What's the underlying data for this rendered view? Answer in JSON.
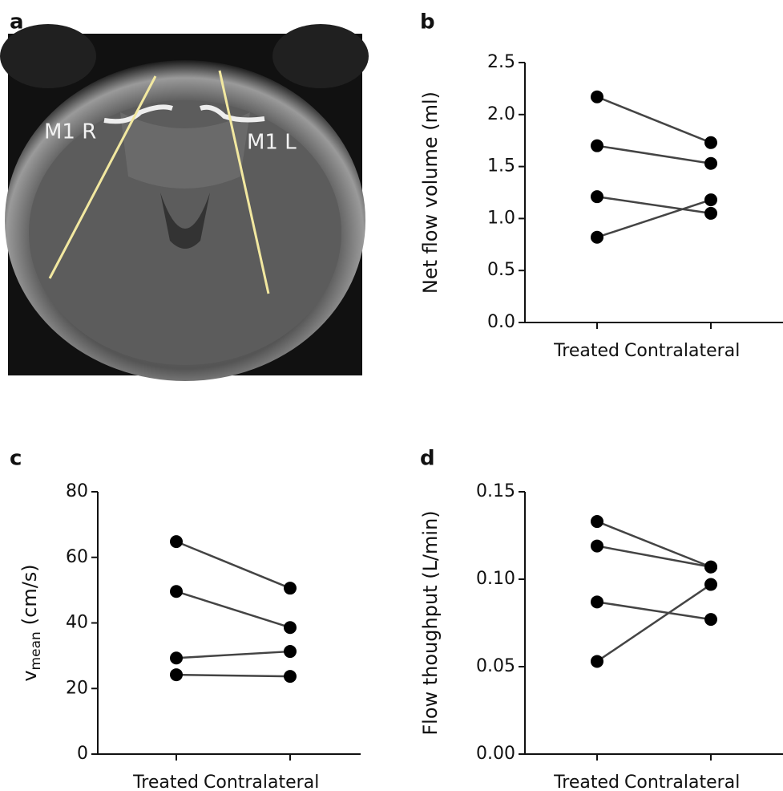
{
  "chart_data": [
    {
      "type": "image",
      "panel": "a",
      "labels": [
        "M1 R",
        "M1 L"
      ]
    },
    {
      "type": "line",
      "panel": "b",
      "ylabel": "Net flow volume (ml)",
      "categories": [
        "Treated",
        "Contralateral"
      ],
      "ylim": [
        0,
        2.5
      ],
      "yticks": [
        {
          "value": 0,
          "label": "0.0"
        },
        0.5,
        {
          "value": 1,
          "label": "1.0"
        },
        1.5,
        {
          "value": 2,
          "label": "2.0"
        },
        2.5
      ],
      "color": "#000000",
      "line_color": "#444444",
      "series": [
        {
          "values": [
            2.17,
            1.73
          ]
        },
        {
          "values": [
            1.7,
            1.53
          ]
        },
        {
          "values": [
            1.21,
            1.05
          ]
        },
        {
          "values": [
            0.82,
            1.18
          ]
        }
      ]
    },
    {
      "type": "line",
      "panel": "c",
      "ylabel": "v",
      "ylabel_sub": "mean",
      "ylabel_unit": "(cm/s)",
      "categories": [
        "Treated",
        "Contralateral"
      ],
      "ylim": [
        0,
        80
      ],
      "yticks": [
        0,
        20,
        40,
        60,
        80
      ],
      "color": "#000000",
      "line_color": "#444444",
      "series": [
        {
          "values": [
            64.8,
            50.6
          ]
        },
        {
          "values": [
            49.6,
            38.6
          ]
        },
        {
          "values": [
            29.3,
            31.3
          ]
        },
        {
          "values": [
            24.2,
            23.7
          ]
        }
      ]
    },
    {
      "type": "line",
      "panel": "d",
      "ylabel": "Flow thoughput (L/min)",
      "categories": [
        "Treated",
        "Contralateral"
      ],
      "ylim": [
        0,
        0.15
      ],
      "yticks": [
        {
          "value": 0,
          "label": "0.00"
        },
        {
          "value": 0.05,
          "label": "0.05"
        },
        {
          "value": 0.1,
          "label": "0.10"
        },
        {
          "value": 0.15,
          "label": "0.15"
        }
      ],
      "color": "#000000",
      "line_color": "#444444",
      "series": [
        {
          "values": [
            0.133,
            0.107
          ]
        },
        {
          "values": [
            0.119,
            0.107
          ]
        },
        {
          "values": [
            0.087,
            0.077
          ]
        },
        {
          "values": [
            0.053,
            0.097
          ]
        }
      ]
    }
  ]
}
